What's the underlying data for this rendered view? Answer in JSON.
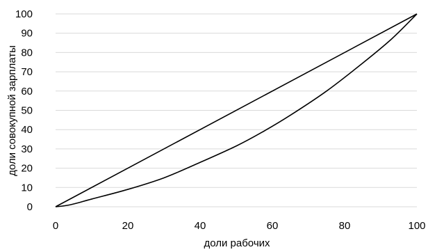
{
  "chart_data": {
    "type": "line",
    "title": "",
    "xlabel": "доли рабочих",
    "ylabel": "доли совокупной зарплаты",
    "xlim": [
      0,
      100
    ],
    "ylim": [
      0,
      100
    ],
    "xticks": [
      0,
      20,
      40,
      60,
      80,
      100
    ],
    "yticks": [
      0,
      10,
      20,
      30,
      40,
      50,
      60,
      70,
      80,
      90,
      100
    ],
    "grid": true,
    "legend": "none",
    "series": [
      {
        "x": [
          0,
          100
        ],
        "y": [
          0,
          100
        ]
      },
      {
        "x": [
          0,
          4,
          10,
          20,
          30,
          40,
          50,
          57,
          65,
          75,
          85,
          93,
          100
        ],
        "y": [
          0,
          1,
          4,
          9,
          15,
          23,
          31.5,
          38.5,
          47.5,
          60,
          74.5,
          87,
          100
        ]
      }
    ],
    "colors": {
      "line": "#000000",
      "grid": "#d9d9d9",
      "text": "#000000"
    }
  }
}
